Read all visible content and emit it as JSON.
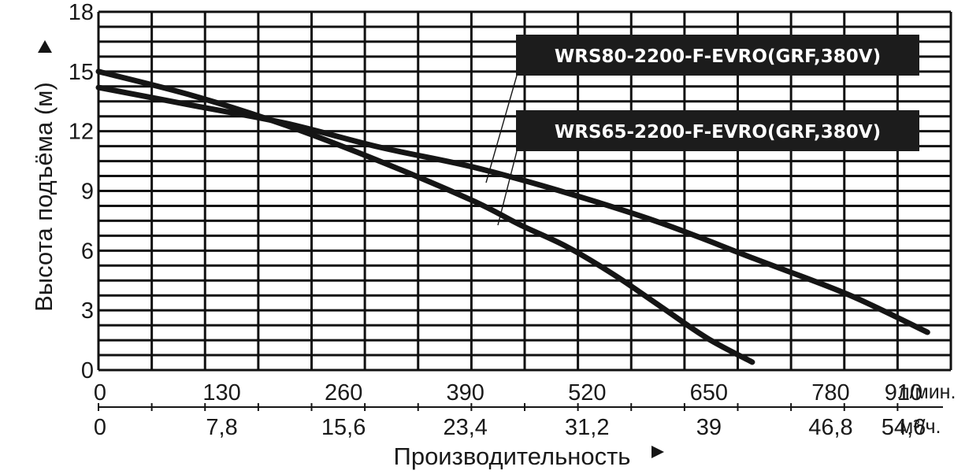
{
  "chart_data": {
    "type": "line",
    "title": "",
    "ylabel": "Высота подъёма (м)",
    "xlabel": "Производительность",
    "ylim": [
      0,
      18
    ],
    "yticks": [
      0,
      3,
      6,
      9,
      12,
      15,
      18
    ],
    "xlim": [
      0,
      910
    ],
    "x_unit": "л/мин.",
    "x_ticks": [
      "0",
      "130",
      "260",
      "390",
      "520",
      "650",
      "780",
      "910"
    ],
    "x2_unit": "м³/ч.",
    "x2_ticks": [
      "0",
      "7,8",
      "15,6",
      "23,4",
      "31,2",
      "39",
      "46,8",
      "54,6"
    ],
    "grid": true,
    "series": [
      {
        "name": "WRS80-2200-F-EVRO(GRF,380V)",
        "x": [
          0,
          100,
          200,
          300,
          400,
          500,
          600,
          700,
          800,
          885
        ],
        "y": [
          14.2,
          13.3,
          12.4,
          11.2,
          10.2,
          8.9,
          7.4,
          5.6,
          3.8,
          1.9
        ]
      },
      {
        "name": "WRS65-2200-F-EVRO(GRF,380V)",
        "x": [
          0,
          100,
          200,
          300,
          400,
          450,
          500,
          550,
          600,
          650,
          698
        ],
        "y": [
          15.0,
          13.8,
          12.3,
          10.5,
          8.5,
          7.3,
          6.2,
          4.8,
          3.2,
          1.6,
          0.4
        ]
      }
    ]
  }
}
